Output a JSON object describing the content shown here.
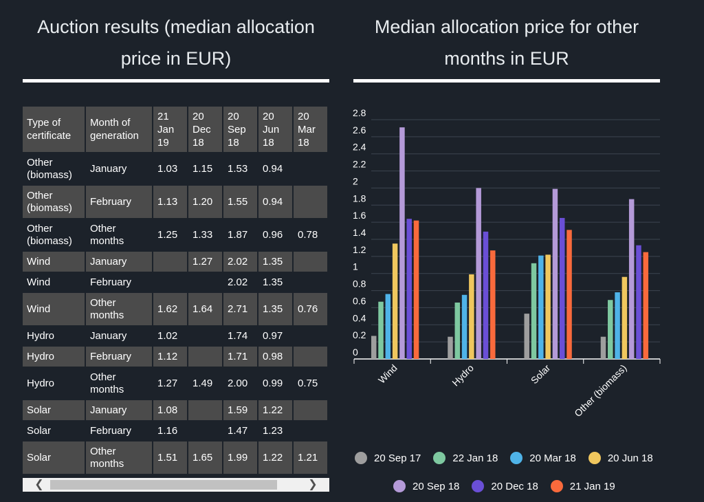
{
  "left_panel": {
    "title": "Auction results (median allocation price in EUR)",
    "columns": [
      "Type of certificate",
      "Month of generation",
      "21 Jan 19",
      "20 Dec 18",
      "20 Sep 18",
      "20 Jun 18",
      "20 Mar 18"
    ],
    "rows": [
      {
        "cells": [
          "Other (biomass)",
          "January",
          "1.03",
          "1.15",
          "1.53",
          "0.94",
          ""
        ],
        "shaded": false
      },
      {
        "cells": [
          "Other (biomass)",
          "February",
          "1.13",
          "1.20",
          "1.55",
          "0.94",
          ""
        ],
        "shaded": true
      },
      {
        "cells": [
          "Other (biomass)",
          "Other months",
          "1.25",
          "1.33",
          "1.87",
          "0.96",
          "0.78"
        ],
        "shaded": false
      },
      {
        "cells": [
          "Wind",
          "January",
          "",
          "1.27",
          "2.02",
          "1.35",
          ""
        ],
        "shaded": true
      },
      {
        "cells": [
          "Wind",
          "February",
          "",
          "",
          "2.02",
          "1.35",
          ""
        ],
        "shaded": false
      },
      {
        "cells": [
          "Wind",
          "Other months",
          "1.62",
          "1.64",
          "2.71",
          "1.35",
          "0.76"
        ],
        "shaded": true
      },
      {
        "cells": [
          "Hydro",
          "January",
          "1.02",
          "",
          "1.74",
          "0.97",
          ""
        ],
        "shaded": false
      },
      {
        "cells": [
          "Hydro",
          "February",
          "1.12",
          "",
          "1.71",
          "0.98",
          ""
        ],
        "shaded": true
      },
      {
        "cells": [
          "Hydro",
          "Other months",
          "1.27",
          "1.49",
          "2.00",
          "0.99",
          "0.75"
        ],
        "shaded": false
      },
      {
        "cells": [
          "Solar",
          "January",
          "1.08",
          "",
          "1.59",
          "1.22",
          ""
        ],
        "shaded": true
      },
      {
        "cells": [
          "Solar",
          "February",
          "1.16",
          "",
          "1.47",
          "1.23",
          ""
        ],
        "shaded": false
      },
      {
        "cells": [
          "Solar",
          "Other months",
          "1.51",
          "1.65",
          "1.99",
          "1.22",
          "1.21"
        ],
        "shaded": true
      }
    ],
    "scroll_left": "❮",
    "scroll_right": "❯"
  },
  "right_panel": {
    "title": "Median allocation price for other months in EUR"
  },
  "chart_data": {
    "type": "bar",
    "title": "Median allocation price for other months in EUR",
    "categories": [
      "Wind",
      "Hydro",
      "Solar",
      "Other (biomass)"
    ],
    "ylim": [
      0,
      2.8
    ],
    "yticks": [
      "0",
      "0.2",
      "0.4",
      "0.6",
      "0.8",
      "1",
      "1.2",
      "1.4",
      "1.6",
      "1.8",
      "2",
      "2.2",
      "2.4",
      "2.6",
      "2.8"
    ],
    "grid": true,
    "legend_position": "bottom",
    "series": [
      {
        "name": "20 Sep 17",
        "color": "#9e9e9e",
        "values": [
          0.27,
          0.26,
          0.53,
          0.26
        ]
      },
      {
        "name": "22 Jan 18",
        "color": "#7ec8a0",
        "values": [
          0.67,
          0.66,
          1.12,
          0.69
        ]
      },
      {
        "name": "20 Mar 18",
        "color": "#4fb3e8",
        "values": [
          0.76,
          0.75,
          1.21,
          0.78
        ]
      },
      {
        "name": "20 Jun 18",
        "color": "#f0c75e",
        "values": [
          1.35,
          0.99,
          1.22,
          0.96
        ]
      },
      {
        "name": "20 Sep 18",
        "color": "#b49ad8",
        "values": [
          2.71,
          2.0,
          1.99,
          1.87
        ]
      },
      {
        "name": "20 Dec 18",
        "color": "#6a4fd6",
        "values": [
          1.64,
          1.49,
          1.65,
          1.33
        ]
      },
      {
        "name": "21 Jan 19",
        "color": "#f96a3c",
        "values": [
          1.62,
          1.27,
          1.51,
          1.25
        ]
      }
    ]
  }
}
